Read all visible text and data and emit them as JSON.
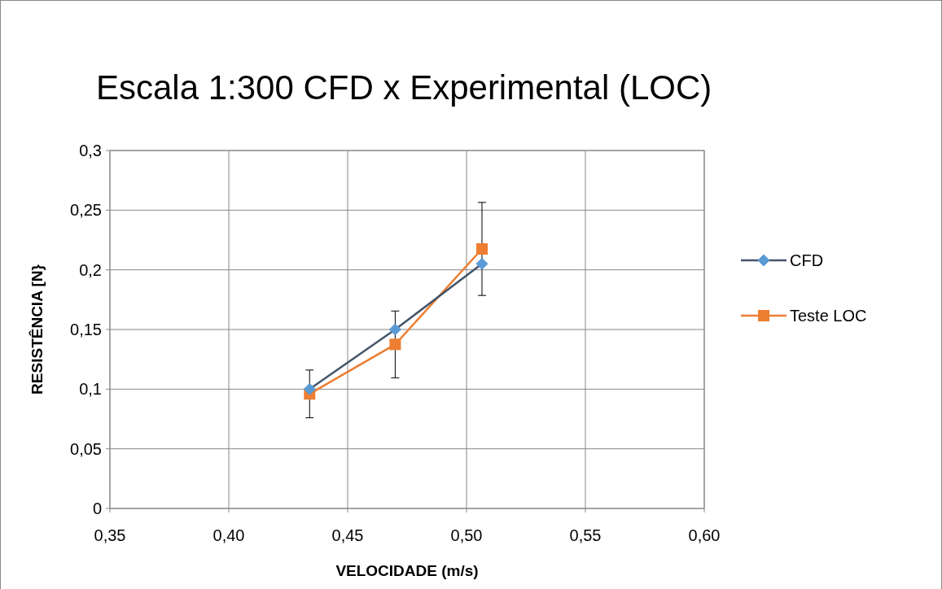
{
  "chart_data": {
    "type": "line",
    "title": "Escala 1:300  CFD x Experimental (LOC)",
    "xlabel": "VELOCIDADE (m/s)",
    "ylabel": "RESISTÊNCIA [N}",
    "x": [
      0.434,
      0.47,
      0.5065
    ],
    "series": [
      {
        "name": "CFD",
        "color": "#44546a",
        "marker": "diamond",
        "values": [
          0.1,
          0.15,
          0.205
        ]
      },
      {
        "name": "Teste LOC",
        "color": "#ed7d31",
        "marker": "square",
        "values": [
          0.096,
          0.1375,
          0.2175
        ],
        "errors": [
          0.02,
          0.028,
          0.039
        ]
      }
    ],
    "xlim": [
      0.35,
      0.6
    ],
    "xticks": [
      {
        "value": 0.35,
        "label": "0,35"
      },
      {
        "value": 0.4,
        "label": "0,40"
      },
      {
        "value": 0.45,
        "label": "0,45"
      },
      {
        "value": 0.5,
        "label": "0,50"
      },
      {
        "value": 0.55,
        "label": "0,55"
      },
      {
        "value": 0.6,
        "label": "0,60"
      }
    ],
    "ylim": [
      0,
      0.3
    ],
    "yticks": [
      0,
      {
        "value": 0.05,
        "label": "0,05"
      },
      {
        "value": 0.1,
        "label": "0,1"
      },
      {
        "value": 0.15,
        "label": "0,15"
      },
      {
        "value": 0.2,
        "label": "0,2"
      },
      {
        "value": 0.25,
        "label": "0,25"
      },
      {
        "value": 0.3,
        "label": "0,3"
      }
    ],
    "grid": true,
    "legend": "right",
    "line_style": "solid"
  }
}
